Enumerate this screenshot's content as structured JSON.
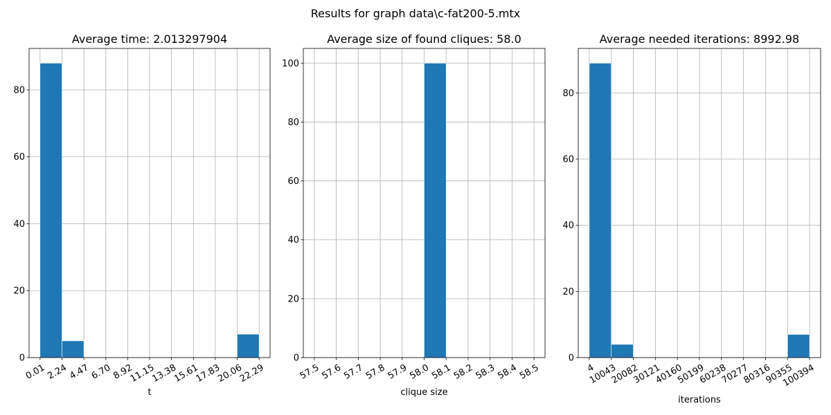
{
  "suptitle": "Results for graph data\\c-fat200-5.mtx",
  "chart_data": [
    {
      "type": "bar",
      "title": "Average time: 2.013297904",
      "xlabel": "t",
      "ylabel": "",
      "bin_edges": [
        0.01,
        2.24,
        4.47,
        6.7,
        8.92,
        11.15,
        13.38,
        15.61,
        17.83,
        20.06,
        22.29
      ],
      "xtick_labels": [
        "0.01",
        "2.24",
        "4.47",
        "6.70",
        "8.92",
        "11.15",
        "13.38",
        "15.61",
        "17.83",
        "20.06",
        "22.29"
      ],
      "counts": [
        88,
        5,
        0,
        0,
        0,
        0,
        0,
        0,
        0,
        7
      ],
      "ylim": [
        0,
        92.4
      ],
      "yticks": [
        0,
        20,
        40,
        60,
        80
      ],
      "grid": true,
      "color": "#1f77b4"
    },
    {
      "type": "bar",
      "title": "Average size of found cliques: 58.0",
      "xlabel": "clique size",
      "ylabel": "",
      "bin_edges": [
        57.5,
        57.6,
        57.7,
        57.8,
        57.9,
        58.0,
        58.1,
        58.2,
        58.3,
        58.4,
        58.5
      ],
      "xtick_labels": [
        "57.5",
        "57.6",
        "57.7",
        "57.8",
        "57.9",
        "58.0",
        "58.1",
        "58.2",
        "58.3",
        "58.4",
        "58.5"
      ],
      "counts": [
        0,
        0,
        0,
        0,
        0,
        100,
        0,
        0,
        0,
        0
      ],
      "ylim": [
        0,
        105
      ],
      "yticks": [
        0,
        20,
        40,
        60,
        80,
        100
      ],
      "grid": true,
      "color": "#1f77b4"
    },
    {
      "type": "bar",
      "title": "Average needed iterations: 8992.98",
      "xlabel": "iterations",
      "ylabel": "",
      "bin_edges": [
        4,
        10043,
        20082,
        30121,
        40160,
        50199,
        60238,
        70277,
        80316,
        90355,
        100394
      ],
      "xtick_labels": [
        "4",
        "10043",
        "20082",
        "30121",
        "40160",
        "50199",
        "60238",
        "70277",
        "80316",
        "90355",
        "100394"
      ],
      "counts": [
        89,
        4,
        0,
        0,
        0,
        0,
        0,
        0,
        0,
        7
      ],
      "ylim": [
        0,
        93.45
      ],
      "yticks": [
        0,
        20,
        40,
        60,
        80
      ],
      "grid": true,
      "color": "#1f77b4"
    }
  ]
}
